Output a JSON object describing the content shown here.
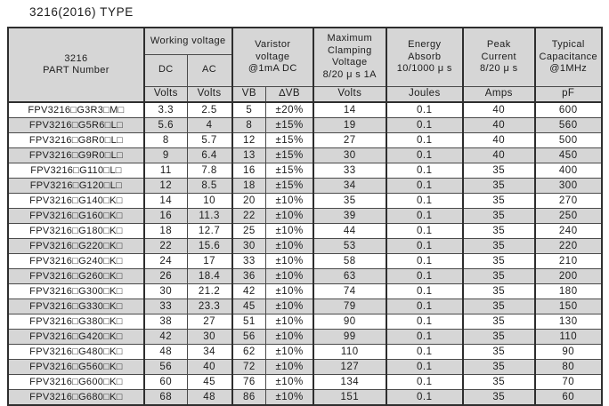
{
  "page": {
    "title": "3216(2016) TYPE"
  },
  "colors": {
    "header_bg": "#d6d6d6",
    "row_stripe": "#d6d6d6",
    "line": "#4a4a4a",
    "line_strong": "#2e2e2e",
    "text": "#1c1c1c",
    "page_bg": "#ffffff"
  },
  "table": {
    "header": {
      "part_number": "3216\nPART Number",
      "working_voltage": "Working voltage",
      "dc": "DC",
      "ac": "AC",
      "varistor_voltage": "Varistor\nvoltage\n@1mA DC",
      "max_clamping": "Maximum\nClamping\nVoltage\n8/20 μ s 1A",
      "energy": "Energy\nAbsorb\n10/1000 μ s",
      "peak_current": "Peak\nCurrent\n8/20 μ s",
      "typical_capacitance": "Typical\nCapacitance\n@1MHz"
    },
    "units": [
      "Volts",
      "Volts",
      "VB",
      "∆VB",
      "Volts",
      "Joules",
      "Amps",
      "pF"
    ],
    "rows": [
      [
        "FPV3216□G3R3□M□",
        "3.3",
        "2.5",
        "5",
        "±20%",
        "14",
        "0.1",
        "40",
        "600"
      ],
      [
        "FPV3216□G5R6□L□",
        "5.6",
        "4",
        "8",
        "±15%",
        "19",
        "0.1",
        "40",
        "560"
      ],
      [
        "FPV3216□G8R0□L□",
        "8",
        "5.7",
        "12",
        "±15%",
        "27",
        "0.1",
        "40",
        "500"
      ],
      [
        "FPV3216□G9R0□L□",
        "9",
        "6.4",
        "13",
        "±15%",
        "30",
        "0.1",
        "40",
        "450"
      ],
      [
        "FPV3216□G110□L□",
        "11",
        "7.8",
        "16",
        "±15%",
        "33",
        "0.1",
        "35",
        "400"
      ],
      [
        "FPV3216□G120□L□",
        "12",
        "8.5",
        "18",
        "±15%",
        "34",
        "0.1",
        "35",
        "300"
      ],
      [
        "FPV3216□G140□K□",
        "14",
        "10",
        "20",
        "±10%",
        "35",
        "0.1",
        "35",
        "270"
      ],
      [
        "FPV3216□G160□K□",
        "16",
        "11.3",
        "22",
        "±10%",
        "39",
        "0.1",
        "35",
        "250"
      ],
      [
        "FPV3216□G180□K□",
        "18",
        "12.7",
        "25",
        "±10%",
        "44",
        "0.1",
        "35",
        "240"
      ],
      [
        "FPV3216□G220□K□",
        "22",
        "15.6",
        "30",
        "±10%",
        "53",
        "0.1",
        "35",
        "220"
      ],
      [
        "FPV3216□G240□K□",
        "24",
        "17",
        "33",
        "±10%",
        "58",
        "0.1",
        "35",
        "210"
      ],
      [
        "FPV3216□G260□K□",
        "26",
        "18.4",
        "36",
        "±10%",
        "63",
        "0.1",
        "35",
        "200"
      ],
      [
        "FPV3216□G300□K□",
        "30",
        "21.2",
        "42",
        "±10%",
        "74",
        "0.1",
        "35",
        "180"
      ],
      [
        "FPV3216□G330□K□",
        "33",
        "23.3",
        "45",
        "±10%",
        "79",
        "0.1",
        "35",
        "150"
      ],
      [
        "FPV3216□G380□K□",
        "38",
        "27",
        "51",
        "±10%",
        "90",
        "0.1",
        "35",
        "130"
      ],
      [
        "FPV3216□G420□K□",
        "42",
        "30",
        "56",
        "±10%",
        "99",
        "0.1",
        "35",
        "110"
      ],
      [
        "FPV3216□G480□K□",
        "48",
        "34",
        "62",
        "±10%",
        "110",
        "0.1",
        "35",
        "90"
      ],
      [
        "FPV3216□G560□K□",
        "56",
        "40",
        "72",
        "±10%",
        "127",
        "0.1",
        "35",
        "80"
      ],
      [
        "FPV3216□G600□K□",
        "60",
        "45",
        "76",
        "±10%",
        "134",
        "0.1",
        "35",
        "70"
      ],
      [
        "FPV3216□G680□K□",
        "68",
        "48",
        "86",
        "±10%",
        "151",
        "0.1",
        "35",
        "60"
      ]
    ]
  }
}
